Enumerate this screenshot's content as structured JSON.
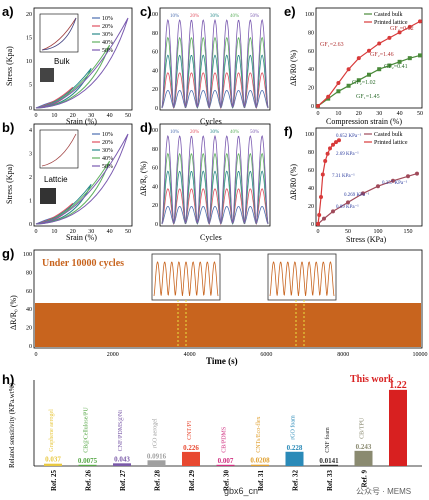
{
  "panels": {
    "a": {
      "letter": "a)",
      "ylabel": "Stress (Kpa)",
      "xlabel": "Srain (%)",
      "inset": "Bulk",
      "legend": [
        "10%",
        "20%",
        "30%",
        "40%",
        "50%"
      ],
      "xticks": [
        "0",
        "10",
        "20",
        "30",
        "40",
        "50"
      ],
      "yticks": [
        "0",
        "5",
        "10",
        "15",
        "20"
      ]
    },
    "b": {
      "letter": "b)",
      "ylabel": "Stress (Kpa)",
      "xlabel": "Srain (%)",
      "inset": "Lattcie",
      "legend": [
        "10%",
        "20%",
        "30%",
        "40%",
        "50%"
      ],
      "xticks": [
        "0",
        "10",
        "20",
        "30",
        "40",
        "50"
      ],
      "yticks": [
        "0",
        "1",
        "2",
        "3",
        "4"
      ]
    },
    "c": {
      "letter": "c)",
      "xlabel": "Cycles",
      "legend": [
        "10%",
        "20%",
        "30%",
        "40%",
        "50%"
      ],
      "yticks": [
        "0",
        "20",
        "40",
        "60",
        "80",
        "100"
      ]
    },
    "d": {
      "letter": "d)",
      "ylabel": "ΔR/R₀ (%)",
      "xlabel": "Cycles",
      "legend": [
        "10%",
        "20%",
        "30%",
        "40%",
        "50%"
      ],
      "yticks": [
        "0",
        "20",
        "40",
        "60",
        "80",
        "100"
      ]
    },
    "e": {
      "letter": "e)",
      "ylabel": "ΔR/R0 (%)",
      "xlabel": "Compression strain (%)",
      "legend": [
        "Casted bulk",
        "Printed lattice"
      ],
      "annotations": [
        "GF₁=2.63",
        "GF₂=1.46",
        "GF₂=0.82",
        "GF₂=1.02",
        "GF₂=0.41",
        "GF₁=1.45"
      ],
      "xticks": [
        "0",
        "10",
        "20",
        "30",
        "40",
        "50"
      ],
      "yticks": [
        "0",
        "20",
        "40",
        "60",
        "80",
        "100"
      ]
    },
    "f": {
      "letter": "f)",
      "ylabel": "ΔR/R0 (%)",
      "xlabel": "Stress (KPa)",
      "legend": [
        "Casted bulk",
        "Printed lattice"
      ],
      "annotations": [
        "0.652 KPa⁻¹",
        "2.69 KPa⁻¹",
        "7.31 KPa⁻¹",
        "0.357 KPa⁻¹",
        "0.269 KPa⁻¹",
        "0.09 KPa⁻¹"
      ],
      "xticks": [
        "0",
        "50",
        "100",
        "150"
      ],
      "yticks": [
        "0",
        "20",
        "40",
        "60",
        "80",
        "100"
      ]
    },
    "g": {
      "letter": "g)",
      "ylabel": "ΔR/R₀ (%)",
      "xlabel": "Time (s)",
      "note": "Under 10000 cycles",
      "xticks": [
        "0",
        "2000",
        "4000",
        "6000",
        "8000",
        "10000"
      ],
      "yticks": [
        "0",
        "20",
        "40",
        "60",
        "80",
        "100"
      ]
    },
    "h": {
      "letter": "h)",
      "ylabel": "Related sensitivity (KPa.wt%)",
      "highlight": "This work"
    }
  },
  "chart_data": [
    {
      "type": "line",
      "panel": "e",
      "xlabel": "Compression strain (%)",
      "ylabel": "ΔR/R0 (%)",
      "xlim": [
        0,
        50
      ],
      "ylim": [
        0,
        100
      ],
      "series": [
        {
          "name": "Casted bulk",
          "x": [
            0,
            5,
            10,
            15,
            20,
            25,
            30,
            35,
            40,
            45,
            50
          ],
          "y": [
            0,
            8,
            16,
            22,
            28,
            34,
            40,
            44,
            48,
            52,
            55
          ]
        },
        {
          "name": "Printed lattice",
          "x": [
            0,
            5,
            10,
            15,
            20,
            25,
            30,
            35,
            40,
            45,
            50
          ],
          "y": [
            0,
            10,
            25,
            40,
            52,
            60,
            68,
            74,
            80,
            86,
            92
          ]
        }
      ]
    },
    {
      "type": "line",
      "panel": "f",
      "xlabel": "Stress (KPa)",
      "ylabel": "ΔR/R0 (%)",
      "xlim": [
        0,
        170
      ],
      "ylim": [
        0,
        100
      ],
      "series": [
        {
          "name": "Casted bulk",
          "x": [
            0,
            10,
            25,
            50,
            75,
            100,
            125,
            150,
            165
          ],
          "y": [
            0,
            6,
            14,
            24,
            34,
            42,
            48,
            53,
            56
          ]
        },
        {
          "name": "Printed lattice",
          "x": [
            0,
            2,
            5,
            8,
            12,
            16,
            20,
            25,
            30,
            35
          ],
          "y": [
            0,
            10,
            30,
            55,
            70,
            78,
            84,
            88,
            91,
            93
          ]
        }
      ]
    },
    {
      "type": "bar",
      "panel": "h",
      "ylabel": "Related sensitivity (KPa.wt%)",
      "categories": [
        "Ref. 25",
        "Ref. 26",
        "Ref. 27",
        "Ref. 28",
        "Ref. 29",
        "Ref. 30",
        "Ref. 31",
        "Ref. 32",
        "Ref. 33",
        "Ref. 9",
        "This work"
      ],
      "bar_labels": [
        "Graphene aerogel",
        "CB@Cellulose/PU",
        "CNF/PDMS@Ni",
        "rGO aerogel",
        "CNT/PI",
        "CB/PDMS",
        "CNTs/Eco-flex",
        "rGO foam",
        "CNF foam",
        "CB/TPU",
        ""
      ],
      "values": [
        0.037,
        0.0075,
        0.043,
        0.0916,
        0.226,
        0.007,
        0.0208,
        0.228,
        0.0141,
        0.243,
        1.22
      ],
      "value_labels": [
        "0.037",
        "0.0075",
        "0.043",
        "0.0916",
        "0.226",
        "0.007",
        "0.0208",
        "0.228",
        "0.0141",
        "0.243",
        "1.22"
      ],
      "colors": [
        "#e8c840",
        "#58a848",
        "#7a5aa8",
        "#a0a0a0",
        "#e84830",
        "#d03080",
        "#e0a030",
        "#2a8ab8",
        "#303030",
        "#8a8a70",
        "#d82020"
      ]
    }
  ],
  "watermark": "gbx6_cn",
  "footer": "公众号 · MEMS",
  "colors": {
    "s10": "#4e6fb0",
    "s20": "#e05060",
    "s30": "#2a8a8a",
    "s40": "#60b060",
    "s50": "#7a5ab0",
    "orange": "#c8641e"
  }
}
